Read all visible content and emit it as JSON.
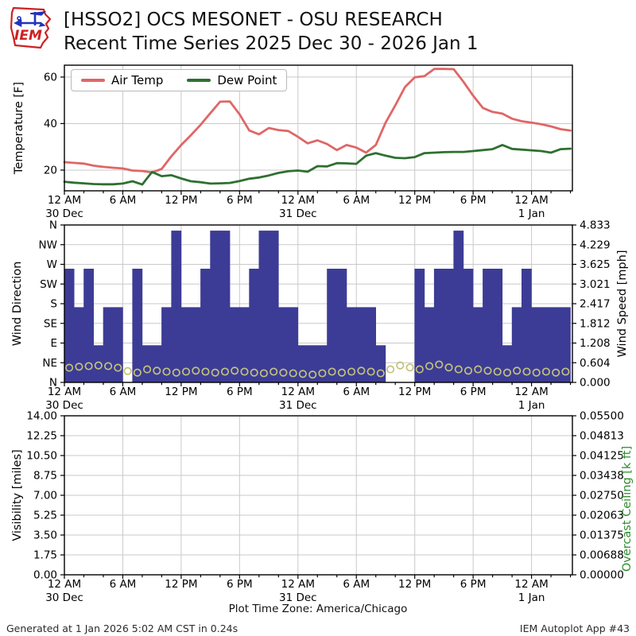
{
  "header": {
    "title_line1": "[HSSO2] OCS MESONET - OSU RESEARCH",
    "title_line2": "Recent Time Series 2025 Dec 30 - 2026 Jan 1",
    "logo_text": "IEM"
  },
  "footer": {
    "generated": "Generated at 1 Jan 2026 5:02 AM CST in 0.24s",
    "app": "IEM Autoplot App #43",
    "timezone": "Plot Time Zone: America/Chicago"
  },
  "colors": {
    "air_temp": "#e06666",
    "dew_point": "#2e7030",
    "wind_bar": "#3c3c96",
    "wind_marker": "#c2c27a",
    "grid": "#c9c9c9",
    "spine": "#000000",
    "right_axis_green": "#2e8b2e",
    "logo_red": "#cc2222",
    "logo_blue": "#2233bb"
  },
  "time_axis": {
    "span_hours": 52.2,
    "major_step_hours": 6,
    "minor_step_hours": 2,
    "tick_labels": [
      "12 AM",
      "6 AM",
      "12 PM",
      "6 PM",
      "12 AM",
      "6 AM",
      "12 PM",
      "6 PM",
      "12 AM"
    ],
    "date_labels": [
      {
        "text": "30 Dec",
        "hour": 0
      },
      {
        "text": "31 Dec",
        "hour": 24
      },
      {
        "text": "1 Jan",
        "hour": 48
      }
    ]
  },
  "chart_data": [
    {
      "type": "line",
      "panel": "temperature",
      "ylabel": "Temperature [F]",
      "ylim": [
        11.1,
        65.1
      ],
      "yticks": [
        20,
        40,
        60
      ],
      "grid": true,
      "legend_position": "upper left",
      "x_hours_step": 1,
      "series": [
        {
          "name": "Air Temp",
          "color_key": "air_temp",
          "values": [
            23.4,
            23.1,
            22.8,
            21.9,
            21.4,
            21.0,
            20.7,
            19.8,
            19.6,
            19.0,
            20.5,
            26.0,
            30.8,
            35.0,
            39.5,
            44.5,
            49.4,
            49.5,
            44.0,
            37.0,
            35.4,
            38.1,
            37.2,
            36.8,
            34.3,
            31.5,
            32.8,
            31.2,
            28.6,
            30.8,
            29.7,
            27.5,
            30.8,
            40.4,
            47.8,
            55.7,
            59.9,
            60.4,
            63.5,
            63.5,
            63.4,
            58.0,
            52.0,
            46.7,
            45.0,
            44.3,
            42.1,
            41.0,
            40.4,
            39.7,
            38.8,
            37.6,
            37.0
          ]
        },
        {
          "name": "Dew Point",
          "color_key": "dew_point",
          "values": [
            15.0,
            14.6,
            14.3,
            14.0,
            13.9,
            13.9,
            14.2,
            15.2,
            13.8,
            19.2,
            17.4,
            17.8,
            16.4,
            15.2,
            14.8,
            14.2,
            14.3,
            14.5,
            15.3,
            16.3,
            16.8,
            17.7,
            18.8,
            19.5,
            19.8,
            19.3,
            21.7,
            21.6,
            23.0,
            22.9,
            22.7,
            26.2,
            27.3,
            26.2,
            25.3,
            25.1,
            25.6,
            27.3,
            27.5,
            27.7,
            27.8,
            27.8,
            28.2,
            28.6,
            29.0,
            30.8,
            29.1,
            28.8,
            28.5,
            28.2,
            27.5,
            29.0,
            29.2
          ]
        }
      ]
    },
    {
      "type": "bar",
      "panel": "wind",
      "ylabel": "Wind Direction",
      "ylabel_right": "Wind Speed [mph]",
      "ylim_degrees": [
        0,
        360
      ],
      "ytick_labels": [
        "N",
        "NW",
        "W",
        "SW",
        "S",
        "SE",
        "E",
        "NE",
        "N"
      ],
      "right_ylim_mph": [
        0,
        4.833
      ],
      "right_tick_labels": [
        "4.833",
        "4.229",
        "3.625",
        "3.021",
        "2.417",
        "1.812",
        "1.208",
        "0.604",
        "0.000"
      ],
      "grid": true,
      "bars_direction_deg": [
        260,
        172,
        260,
        85,
        172,
        172,
        0,
        260,
        85,
        85,
        172,
        347,
        172,
        172,
        260,
        347,
        347,
        172,
        172,
        260,
        347,
        347,
        172,
        172,
        85,
        85,
        85,
        260,
        260,
        172,
        172,
        172,
        85,
        0,
        0,
        0,
        260,
        172,
        260,
        260,
        347,
        260,
        172,
        260,
        260,
        85,
        172,
        260,
        172,
        172,
        172,
        172
      ],
      "markers_wind_speed_mph": [
        0.45,
        0.48,
        0.5,
        0.52,
        0.5,
        0.45,
        0.35,
        0.3,
        0.4,
        0.36,
        0.33,
        0.3,
        0.33,
        0.36,
        0.33,
        0.3,
        0.33,
        0.36,
        0.33,
        0.3,
        0.28,
        0.33,
        0.3,
        0.28,
        0.26,
        0.24,
        0.28,
        0.33,
        0.3,
        0.33,
        0.36,
        0.33,
        0.28,
        0.4,
        0.52,
        0.46,
        0.4,
        0.5,
        0.55,
        0.46,
        0.4,
        0.36,
        0.4,
        0.36,
        0.33,
        0.3,
        0.36,
        0.33,
        0.3,
        0.33,
        0.3,
        0.33
      ]
    },
    {
      "type": "line",
      "panel": "visibility",
      "ylabel": "Visibility [miles]",
      "ylabel_right": "Overcast Ceiling [k ft]",
      "ytick_labels": [
        "14.00",
        "12.25",
        "10.50",
        "8.75",
        "7.00",
        "5.25",
        "3.50",
        "1.75",
        "0.00"
      ],
      "right_tick_labels": [
        "0.05500",
        "0.04813",
        "0.04125",
        "0.03438",
        "0.02750",
        "0.02063",
        "0.01375",
        "0.00688",
        "0.00000"
      ],
      "grid": true,
      "series": []
    }
  ]
}
